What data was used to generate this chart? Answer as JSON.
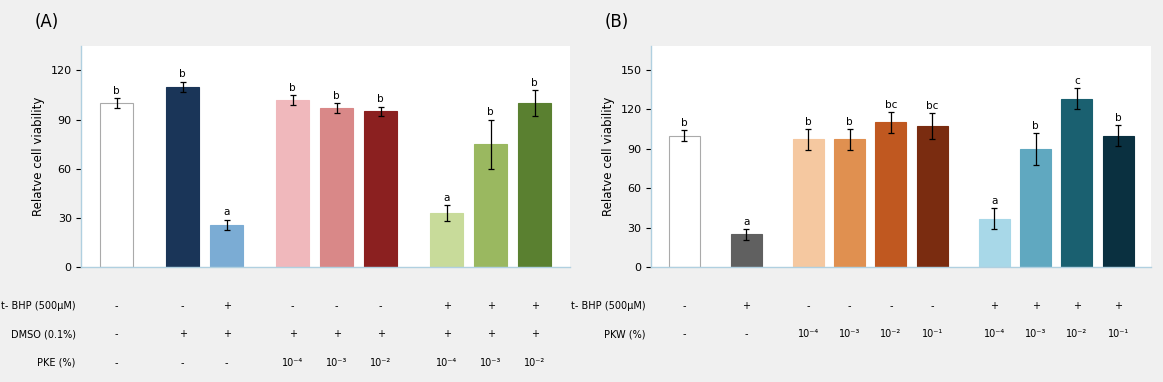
{
  "panel_A": {
    "ylabel": "Relatve cell viability",
    "ylim": [
      0,
      135
    ],
    "yticks": [
      0,
      30,
      60,
      90,
      120
    ],
    "bar_positions": [
      0,
      1.5,
      2.5,
      4.0,
      5.0,
      6.0,
      7.5,
      8.5,
      9.5
    ],
    "bars": [
      {
        "value": 100,
        "error": 3,
        "color": "#ffffff",
        "edgecolor": "#aaaaaa",
        "label": "b"
      },
      {
        "value": 110,
        "error": 3,
        "color": "#1a3558",
        "edgecolor": "#1a3558",
        "label": "b"
      },
      {
        "value": 26,
        "error": 3,
        "color": "#7bacd4",
        "edgecolor": "#7bacd4",
        "label": "a"
      },
      {
        "value": 102,
        "error": 3,
        "color": "#f0b8bc",
        "edgecolor": "#f0b8bc",
        "label": "b"
      },
      {
        "value": 97,
        "error": 3,
        "color": "#d98888",
        "edgecolor": "#d98888",
        "label": "b"
      },
      {
        "value": 95,
        "error": 3,
        "color": "#8b2020",
        "edgecolor": "#8b2020",
        "label": "b"
      },
      {
        "value": 33,
        "error": 5,
        "color": "#c8db9a",
        "edgecolor": "#c8db9a",
        "label": "a"
      },
      {
        "value": 75,
        "error": 15,
        "color": "#9ab860",
        "edgecolor": "#9ab860",
        "label": "b"
      },
      {
        "value": 100,
        "error": 8,
        "color": "#5a8030",
        "edgecolor": "#5a8030",
        "label": "b"
      }
    ],
    "row_labels": [
      "t- BHP (500μM)",
      "DMSO (0.1%)",
      "PKE (%)"
    ],
    "col_labels": [
      [
        "-",
        "-",
        "+",
        "-",
        "-",
        "-",
        "+",
        "+",
        "+"
      ],
      [
        "-",
        "+",
        "+",
        "+",
        "+",
        "+",
        "+",
        "+",
        "+"
      ],
      [
        "-",
        "-",
        "-",
        "10⁻⁴",
        "10⁻³",
        "10⁻²",
        "10⁻⁴",
        "10⁻³",
        "10⁻²"
      ]
    ]
  },
  "panel_B": {
    "ylabel": "Relatve cell viability",
    "ylim": [
      0,
      168
    ],
    "yticks": [
      0,
      30,
      60,
      90,
      120,
      150
    ],
    "bar_positions": [
      0,
      1.5,
      3.0,
      4.0,
      5.0,
      6.0,
      7.5,
      8.5,
      9.5,
      10.5
    ],
    "bars": [
      {
        "value": 100,
        "error": 4,
        "color": "#ffffff",
        "edgecolor": "#aaaaaa",
        "label": "b"
      },
      {
        "value": 25,
        "error": 4,
        "color": "#606060",
        "edgecolor": "#606060",
        "label": "a"
      },
      {
        "value": 97,
        "error": 8,
        "color": "#f5c8a0",
        "edgecolor": "#f5c8a0",
        "label": "b"
      },
      {
        "value": 97,
        "error": 8,
        "color": "#e09050",
        "edgecolor": "#e09050",
        "label": "b"
      },
      {
        "value": 110,
        "error": 8,
        "color": "#c05820",
        "edgecolor": "#c05820",
        "label": "bc"
      },
      {
        "value": 107,
        "error": 10,
        "color": "#7a2c10",
        "edgecolor": "#7a2c10",
        "label": "bc"
      },
      {
        "value": 37,
        "error": 8,
        "color": "#a8d8e8",
        "edgecolor": "#a8d8e8",
        "label": "a"
      },
      {
        "value": 90,
        "error": 12,
        "color": "#60a8c0",
        "edgecolor": "#60a8c0",
        "label": "b"
      },
      {
        "value": 128,
        "error": 8,
        "color": "#1a6070",
        "edgecolor": "#1a6070",
        "label": "c"
      },
      {
        "value": 100,
        "error": 8,
        "color": "#0a3040",
        "edgecolor": "#0a3040",
        "label": "b"
      }
    ],
    "row_labels": [
      "t- BHP (500μM)",
      "PKW (%)"
    ],
    "col_labels": [
      [
        "-",
        "+",
        "-",
        "-",
        "-",
        "-",
        "+",
        "+",
        "+",
        "+"
      ],
      [
        "-",
        "-",
        "10⁻⁴",
        "10⁻³",
        "10⁻²",
        "10⁻¹",
        "10⁻⁴",
        "10⁻³",
        "10⁻²",
        "10⁻¹"
      ]
    ]
  },
  "fig_bg": "#f0f0f0",
  "panel_bg": "#ffffff",
  "border_color": "#b0d0e0"
}
